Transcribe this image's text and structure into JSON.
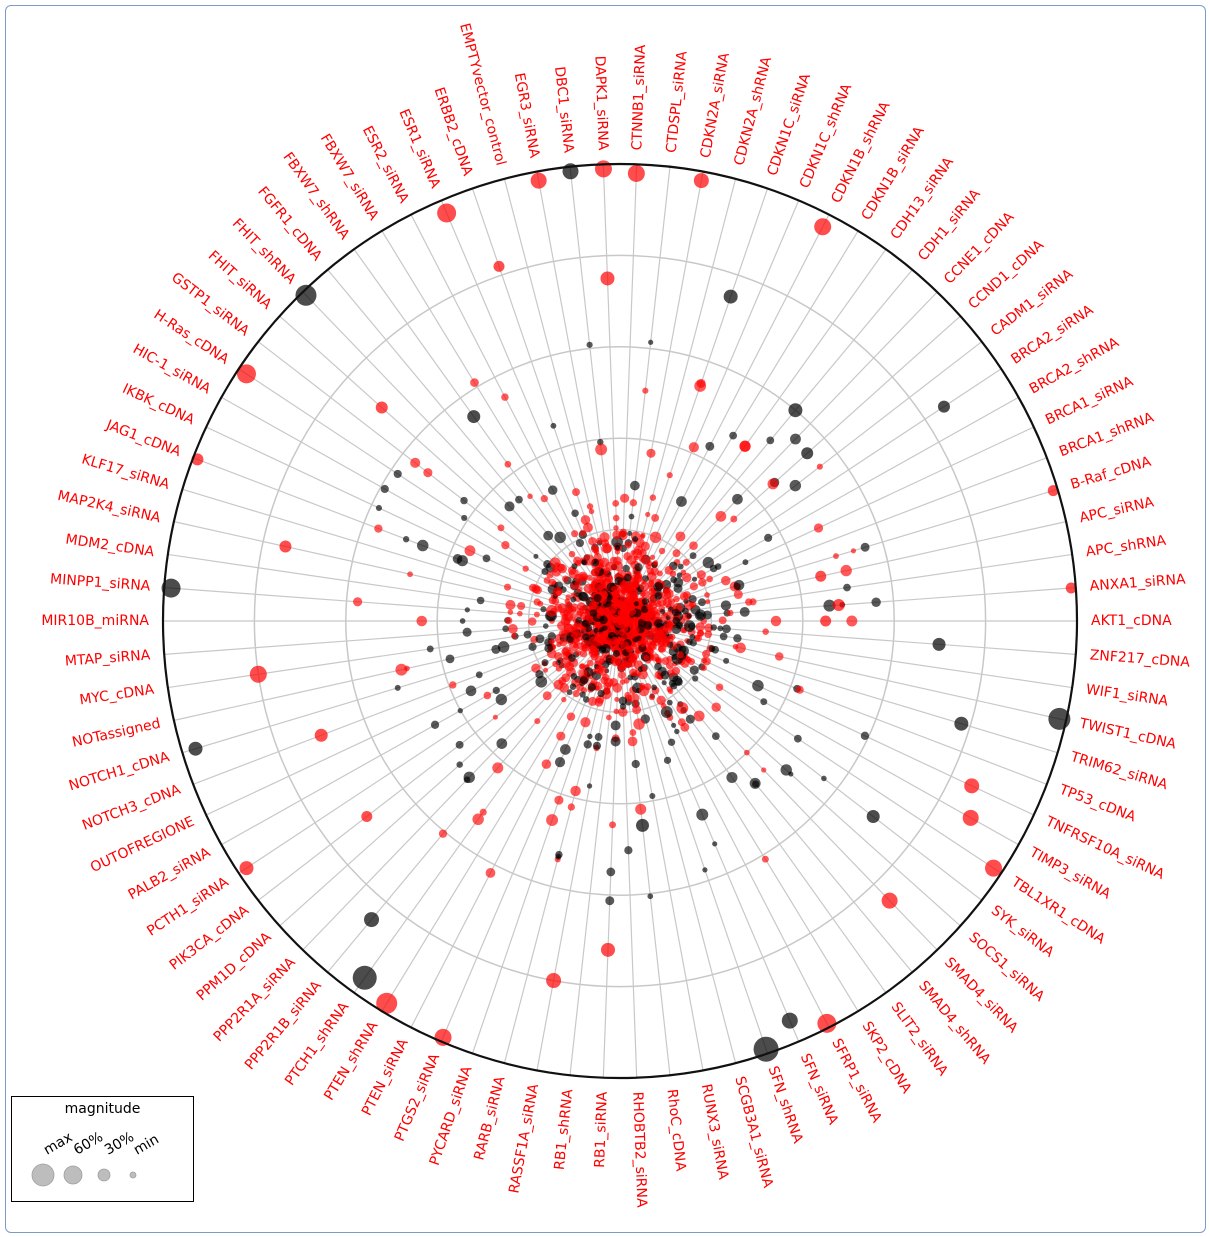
{
  "chart_data": {
    "type": "radial-scatter",
    "title": "",
    "categories": [
      "AKT1_cDNA",
      "ANXA1_siRNA",
      "APC_shRNA",
      "APC_siRNA",
      "B-Raf_cDNA",
      "BRCA1_shRNA",
      "BRCA1_siRNA",
      "BRCA2_shRNA",
      "BRCA2_siRNA",
      "CADM1_siRNA",
      "CCND1_cDNA",
      "CCNE1_cDNA",
      "CDH1_siRNA",
      "CDH13_siRNA",
      "CDKN1B_siRNA",
      "CDKN1B_shRNA",
      "CDKN1C_shRNA",
      "CDKN1C_siRNA",
      "CDKN2A_shRNA",
      "CDKN2A_siRNA",
      "CTDSPL_siRNA",
      "CTNNB1_siRNA",
      "DAPK1_siRNA",
      "DBC1_siRNA",
      "EGR3_siRNA",
      "EMPTYvector_control",
      "ERBB2_cDNA",
      "ESR1_siRNA",
      "ESR2_siRNA",
      "FBXW7_siRNA",
      "FBXW7_shRNA",
      "FGFR1_cDNA",
      "FHIT_shRNA",
      "FHIT_siRNA",
      "GSTP1_siRNA",
      "H-Ras_cDNA",
      "HIC-1_siRNA",
      "IKBK_cDNA",
      "JAG1_cDNA",
      "KLF17_siRNA",
      "MAP2K4_siRNA",
      "MDM2_cDNA",
      "MINPP1_siRNA",
      "MIR10B_miRNA",
      "MTAP_siRNA",
      "MYC_cDNA",
      "NOTassigned",
      "NOTCH1_cDNA",
      "NOTCH3_cDNA",
      "OUTOFREGIONE",
      "PALB2_siRNA",
      "PCTH1_siRNA",
      "PIK3CA_cDNA",
      "PPM1D_cDNA",
      "PPP2R1A_siRNA",
      "PPP2R1B_siRNA",
      "PTCH1_shRNA",
      "PTEN_shRNA",
      "PTEN_siRNA",
      "PTGS2_siRNA",
      "PYCARD_siRNA",
      "RARB_siRNA",
      "RASSF1A_siRNA",
      "RB1_shRNA",
      "RB1_siRNA",
      "RHOBTB2_siRNA",
      "RhoC_cDNA",
      "RUNX3_siRNA",
      "SCGB3A1_siRNA",
      "SFN_shRNA",
      "SFN_siRNA",
      "SFRP1_siRNA",
      "SKP2_cDNA",
      "SLIT2_siRNA",
      "SMAD4_shRNA",
      "SMAD4_siRNA",
      "SOCS1_siRNA",
      "SYK_siRNA",
      "TBL1XR1_cDNA",
      "TIMP3_siRNA",
      "TNFRSF10A_siRNA",
      "TP53_cDNA",
      "TRIM62_siRNA",
      "TWIST1_cDNA",
      "WIF1_siRNA",
      "ZNF217_cDNA"
    ],
    "series": [
      {
        "color": "#000000"
      },
      {
        "color": "#ff0000"
      }
    ],
    "points": [
      {
        "c": 83,
        "r": 0.985,
        "s": 0.85,
        "k": 0
      },
      {
        "c": 69,
        "r": 0.99,
        "s": 1.0,
        "k": 0
      },
      {
        "c": 70,
        "r": 0.95,
        "s": 0.55,
        "k": 0
      },
      {
        "c": 56,
        "r": 0.96,
        "s": 0.95,
        "k": 0
      },
      {
        "c": 32,
        "r": 0.99,
        "s": 0.8,
        "k": 0
      },
      {
        "c": 42,
        "r": 0.985,
        "s": 0.7,
        "k": 0
      },
      {
        "c": 23,
        "r": 0.99,
        "s": 0.55,
        "k": 0
      },
      {
        "c": 82,
        "r": 0.78,
        "s": 0.45,
        "k": 0
      },
      {
        "c": 47,
        "r": 0.97,
        "s": 0.45,
        "k": 0
      },
      {
        "c": 55,
        "r": 0.85,
        "s": 0.5,
        "k": 0
      },
      {
        "c": 17,
        "r": 0.75,
        "s": 0.45,
        "k": 0
      },
      {
        "c": 85,
        "r": 0.7,
        "s": 0.4,
        "k": 0
      },
      {
        "c": 8,
        "r": 0.85,
        "s": 0.35,
        "k": 0
      },
      {
        "c": 77,
        "r": 0.7,
        "s": 0.4,
        "k": 0
      },
      {
        "c": 21,
        "r": 0.98,
        "s": 0.6,
        "k": 1
      },
      {
        "c": 22,
        "r": 0.99,
        "s": 0.6,
        "k": 1
      },
      {
        "c": 24,
        "r": 0.98,
        "s": 0.55,
        "k": 1
      },
      {
        "c": 19,
        "r": 0.98,
        "s": 0.5,
        "k": 1
      },
      {
        "c": 15,
        "r": 0.97,
        "s": 0.6,
        "k": 1
      },
      {
        "c": 27,
        "r": 0.97,
        "s": 0.7,
        "k": 1
      },
      {
        "c": 35,
        "r": 0.98,
        "s": 0.7,
        "k": 1
      },
      {
        "c": 45,
        "r": 0.8,
        "s": 0.6,
        "k": 1
      },
      {
        "c": 59,
        "r": 0.99,
        "s": 0.6,
        "k": 1
      },
      {
        "c": 78,
        "r": 0.98,
        "s": 0.6,
        "k": 1
      },
      {
        "c": 71,
        "r": 0.99,
        "s": 0.7,
        "k": 1
      },
      {
        "c": 79,
        "r": 0.88,
        "s": 0.55,
        "k": 1
      },
      {
        "c": 80,
        "r": 0.85,
        "s": 0.5,
        "k": 1
      },
      {
        "c": 87,
        "r": 0.99,
        "s": 0.3,
        "k": 1
      },
      {
        "c": 4,
        "r": 0.99,
        "s": 0.3,
        "k": 1
      },
      {
        "c": 38,
        "r": 0.99,
        "s": 0.35,
        "k": 1
      },
      {
        "c": 51,
        "r": 0.98,
        "s": 0.45,
        "k": 1
      },
      {
        "c": 22,
        "r": 0.75,
        "s": 0.45,
        "k": 1
      },
      {
        "c": 26,
        "r": 0.82,
        "s": 0.3,
        "k": 1
      },
      {
        "c": 62,
        "r": 0.8,
        "s": 0.5,
        "k": 1
      },
      {
        "c": 64,
        "r": 0.72,
        "s": 0.45,
        "k": 1
      },
      {
        "c": 48,
        "r": 0.7,
        "s": 0.4,
        "k": 1
      },
      {
        "c": 40,
        "r": 0.75,
        "s": 0.35,
        "k": 1
      },
      {
        "c": 57,
        "r": 0.98,
        "s": 0.8,
        "k": 1
      },
      {
        "c": 33,
        "r": 0.7,
        "s": 0.35,
        "k": 1
      },
      {
        "c": 52,
        "r": 0.7,
        "s": 0.3,
        "k": 1
      },
      {
        "c": 75,
        "r": 0.85,
        "s": 0.55,
        "k": 1
      },
      {
        "c": 1,
        "r": 0.48,
        "s": 0.35,
        "k": 1
      },
      {
        "c": 0,
        "r": 0.45,
        "s": 0.3,
        "k": 1
      },
      {
        "c": 3,
        "r": 0.45,
        "s": 0.3,
        "k": 1
      },
      {
        "c": 30,
        "r": 0.55,
        "s": 0.4,
        "k": 0
      },
      {
        "c": 12,
        "r": 0.6,
        "s": 0.45,
        "k": 0
      },
      {
        "c": 10,
        "r": 0.55,
        "s": 0.35,
        "k": 0
      },
      {
        "c": 66,
        "r": 0.45,
        "s": 0.4,
        "k": 0
      }
    ],
    "dense_core": {
      "count": 1500,
      "max_r": 0.22
    },
    "scatter_cloud": {
      "count": 260,
      "max_r": 0.62
    },
    "rings": [
      0.2,
      0.4,
      0.6,
      0.8,
      1.0
    ],
    "rlim": [
      0,
      1
    ],
    "grid": true,
    "legend": {
      "position": "bottom-left",
      "title": "magnitude",
      "entries": [
        "max",
        "60%",
        "30%",
        "min"
      ]
    }
  }
}
